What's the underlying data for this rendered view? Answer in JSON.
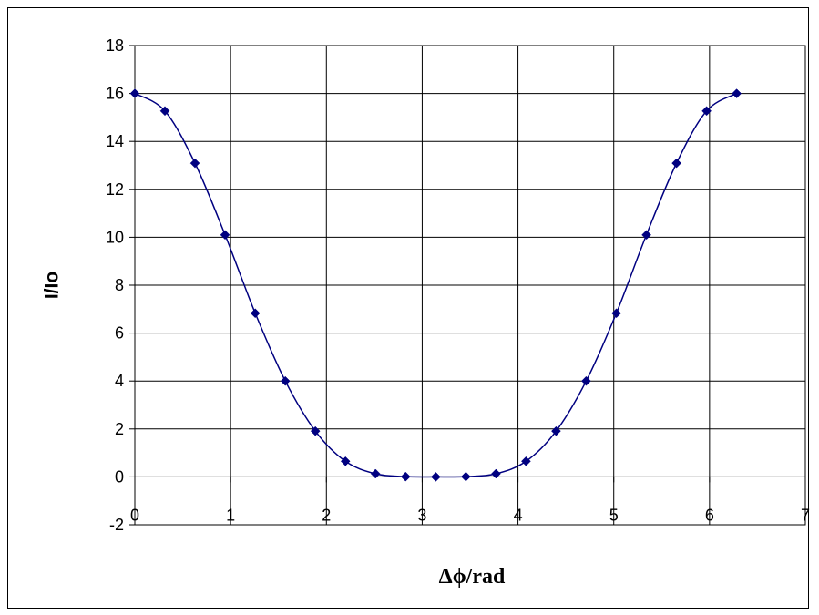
{
  "chart_data": {
    "type": "scatter",
    "xlabel": "Δϕ/rad",
    "ylabel": "I/Io",
    "xlim": [
      0,
      7
    ],
    "ylim": [
      -2,
      18
    ],
    "x_ticks": [
      "0",
      "1",
      "2",
      "3",
      "4",
      "5",
      "6",
      "7"
    ],
    "y_ticks": [
      "18",
      "16",
      "14",
      "12",
      "10",
      "8",
      "6",
      "4",
      "2",
      "0",
      "-2"
    ],
    "grid": true,
    "legend": "none",
    "line": "smoothed",
    "marker": "diamond",
    "series_color": "#000080",
    "series": [
      {
        "x": [
          0,
          0.314,
          0.628,
          0.942,
          1.257,
          1.571,
          1.885,
          2.199,
          2.513,
          2.827,
          3.142,
          3.456,
          3.77,
          4.084,
          4.398,
          4.712,
          5.027,
          5.341,
          5.655,
          5.969,
          6.283
        ],
        "y": [
          16.0,
          15.27,
          13.09,
          10.1,
          6.83,
          4.0,
          1.91,
          0.65,
          0.13,
          0.01,
          0.0,
          0.01,
          0.13,
          0.65,
          1.91,
          4.0,
          6.83,
          10.1,
          13.09,
          15.27,
          16.0
        ]
      }
    ]
  }
}
